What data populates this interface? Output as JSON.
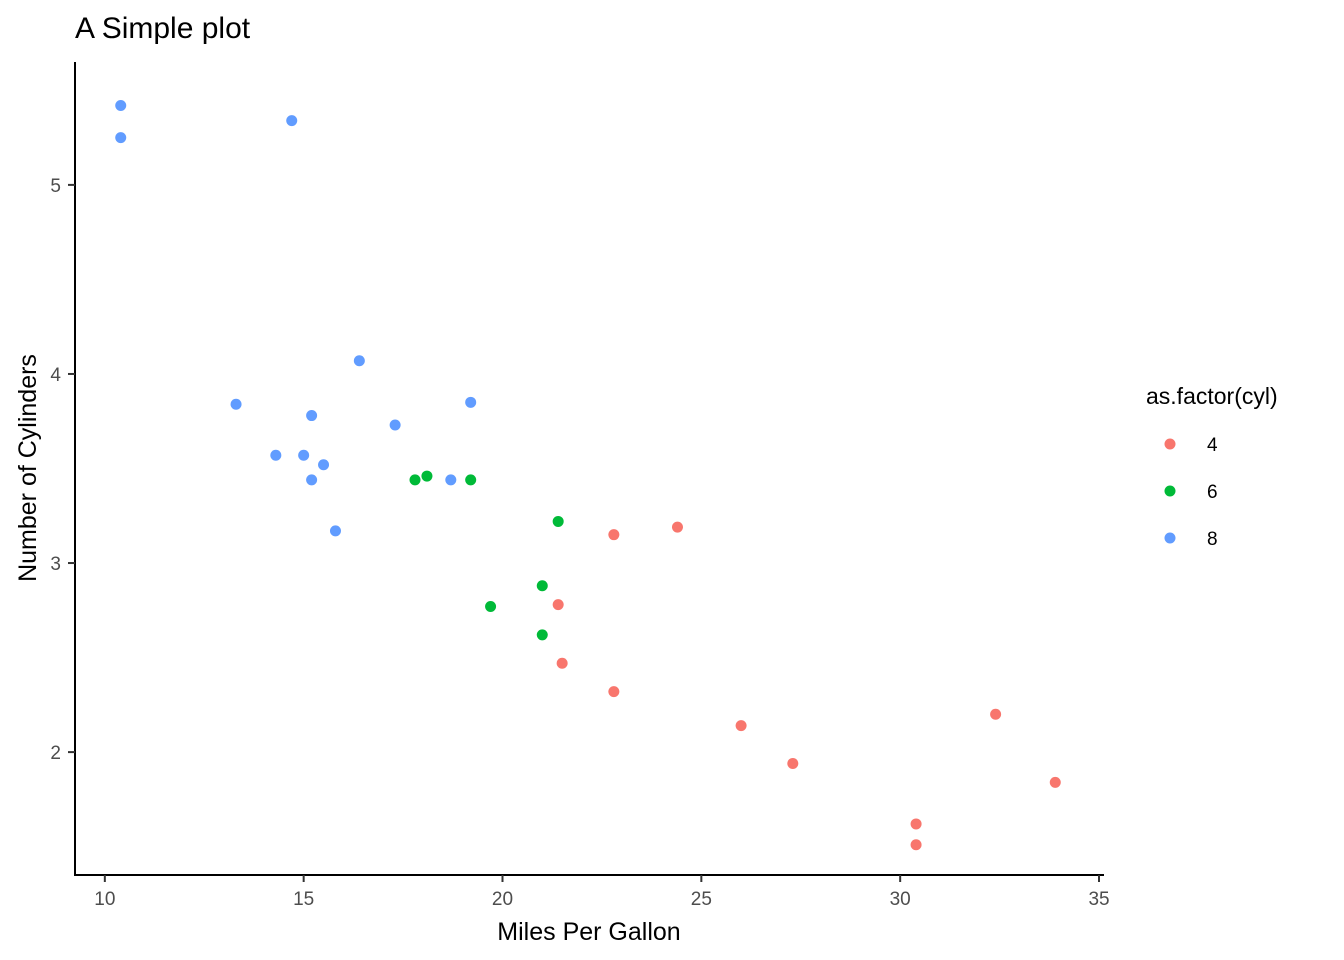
{
  "chart_data": {
    "type": "scatter",
    "title": "A Simple plot",
    "xlabel": "Miles Per Gallon",
    "ylabel": "Number of Cylinders",
    "xlim": [
      9.25,
      35.05
    ],
    "ylim": [
      1.35,
      5.65
    ],
    "xticks": [
      10,
      15,
      20,
      25,
      30,
      35
    ],
    "xtick_labels": [
      "10",
      "15",
      "20",
      "25",
      "30",
      "35"
    ],
    "yticks": [
      2,
      3,
      4,
      5
    ],
    "ytick_labels": [
      "2",
      "3",
      "4",
      "5"
    ],
    "grid": false,
    "legend": {
      "title": "as.factor(cyl)",
      "placement": "right"
    },
    "series": [
      {
        "name": "4",
        "color": "#F8766D",
        "points": [
          {
            "x": 22.8,
            "y": 3.15
          },
          {
            "x": 24.4,
            "y": 3.19
          },
          {
            "x": 21.4,
            "y": 2.78
          },
          {
            "x": 21.5,
            "y": 2.47
          },
          {
            "x": 22.8,
            "y": 2.32
          },
          {
            "x": 26.0,
            "y": 2.14
          },
          {
            "x": 27.3,
            "y": 1.94
          },
          {
            "x": 32.4,
            "y": 2.2
          },
          {
            "x": 33.9,
            "y": 1.84
          },
          {
            "x": 30.4,
            "y": 1.62
          },
          {
            "x": 30.4,
            "y": 1.51
          }
        ]
      },
      {
        "name": "6",
        "color": "#00BA38",
        "points": [
          {
            "x": 17.8,
            "y": 3.44
          },
          {
            "x": 18.1,
            "y": 3.46
          },
          {
            "x": 19.2,
            "y": 3.44
          },
          {
            "x": 21.4,
            "y": 3.22
          },
          {
            "x": 21.0,
            "y": 2.88
          },
          {
            "x": 19.7,
            "y": 2.77
          },
          {
            "x": 21.0,
            "y": 2.62
          }
        ]
      },
      {
        "name": "8",
        "color": "#619CFF",
        "points": [
          {
            "x": 10.4,
            "y": 5.42
          },
          {
            "x": 10.4,
            "y": 5.25
          },
          {
            "x": 14.7,
            "y": 5.34
          },
          {
            "x": 16.4,
            "y": 4.07
          },
          {
            "x": 13.3,
            "y": 3.84
          },
          {
            "x": 19.2,
            "y": 3.85
          },
          {
            "x": 15.2,
            "y": 3.78
          },
          {
            "x": 17.3,
            "y": 3.73
          },
          {
            "x": 14.3,
            "y": 3.57
          },
          {
            "x": 15.0,
            "y": 3.57
          },
          {
            "x": 15.5,
            "y": 3.52
          },
          {
            "x": 15.2,
            "y": 3.44
          },
          {
            "x": 18.7,
            "y": 3.44
          },
          {
            "x": 15.8,
            "y": 3.17
          }
        ]
      }
    ]
  }
}
